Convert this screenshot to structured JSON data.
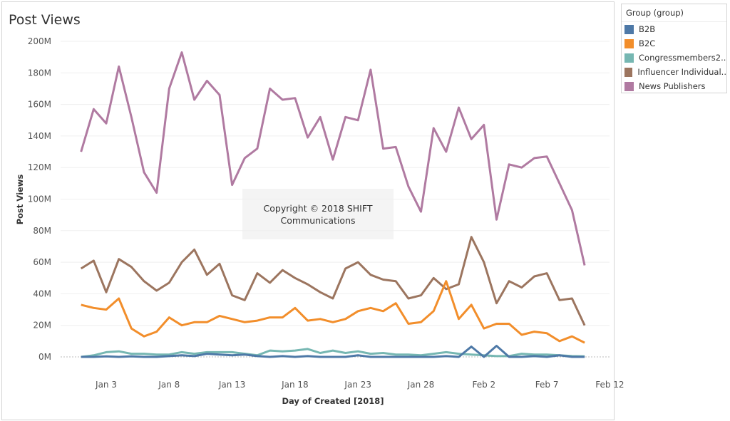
{
  "title": "Post Views",
  "watermark": {
    "line1": "Copyright © 2018 SHIFT",
    "line2": "Communications"
  },
  "legend": {
    "title": "Group (group)",
    "items": [
      "B2B",
      "B2C",
      "Congressmembers2..",
      "Influencer Individual..",
      "News Publishers"
    ]
  },
  "chart_data": {
    "type": "line",
    "title": "Post Views",
    "xlabel": "Day of Created [2018]",
    "ylabel": "Post Views",
    "ylim": [
      0,
      200
    ],
    "yticks": [
      "0M",
      "20M",
      "40M",
      "60M",
      "80M",
      "100M",
      "120M",
      "140M",
      "160M",
      "180M",
      "200M"
    ],
    "xticks": [
      {
        "label": "Jan 3",
        "day": 2
      },
      {
        "label": "Jan 8",
        "day": 7
      },
      {
        "label": "Jan 13",
        "day": 12
      },
      {
        "label": "Jan 18",
        "day": 17
      },
      {
        "label": "Jan 23",
        "day": 22
      },
      {
        "label": "Jan 28",
        "day": 27
      },
      {
        "label": "Feb 2",
        "day": 32
      },
      {
        "label": "Feb 7",
        "day": 37
      },
      {
        "label": "Feb 12",
        "day": 42
      }
    ],
    "x_start": "2018-01-01",
    "x_end": "2018-02-10",
    "grid": true,
    "legend_position": "right",
    "series": [
      {
        "name": "B2B",
        "color": "#4e79a7",
        "values": [
          0,
          0,
          0.3,
          0,
          0.3,
          0,
          0,
          0.5,
          1,
          0.5,
          2,
          1.5,
          1,
          1.5,
          0.5,
          0,
          0.5,
          0,
          0.5,
          0,
          0,
          0,
          1,
          0,
          0,
          0,
          0,
          0,
          0,
          0.5,
          0,
          6.5,
          0,
          7,
          0,
          0,
          0.5,
          0,
          1,
          0,
          0
        ]
      },
      {
        "name": "B2C",
        "color": "#f28e2b",
        "values": [
          33,
          31,
          30,
          37,
          18,
          13,
          16,
          25,
          20,
          22,
          22,
          26,
          24,
          22,
          23,
          25,
          25,
          31,
          23,
          24,
          22,
          24,
          29,
          31,
          29,
          34,
          21,
          22,
          29,
          48,
          24,
          33,
          18,
          21,
          21,
          14,
          16,
          15,
          10,
          13,
          9
        ]
      },
      {
        "name": "Congressmembers2..",
        "color": "#76b7b2",
        "values": [
          0,
          1,
          3,
          3.5,
          2,
          2,
          1.5,
          1.5,
          3,
          2,
          3,
          3,
          3,
          2,
          1,
          4,
          3.5,
          4,
          5,
          2.5,
          4,
          2.5,
          3.5,
          2,
          2.5,
          1.5,
          1.5,
          1,
          2,
          3,
          2,
          1.5,
          1,
          0.5,
          0.5,
          2,
          1.5,
          1.5,
          1,
          0.5,
          0.3
        ]
      },
      {
        "name": "Influencer Individual..",
        "color": "#9c755f",
        "values": [
          56,
          61,
          41,
          62,
          57,
          48,
          42,
          47,
          60,
          68,
          52,
          59,
          39,
          36,
          53,
          47,
          55,
          50,
          46,
          41,
          37,
          56,
          60,
          52,
          49,
          48,
          37,
          39,
          50,
          43,
          46,
          76,
          60,
          34,
          48,
          44,
          51,
          53,
          36,
          37,
          20
        ]
      },
      {
        "name": "News Publishers",
        "color": "#b07aa1",
        "values": [
          130,
          157,
          148,
          184,
          152,
          117,
          104,
          170,
          193,
          163,
          175,
          166,
          109,
          126,
          132,
          170,
          163,
          164,
          139,
          152,
          125,
          152,
          150,
          182,
          132,
          133,
          108,
          92,
          145,
          130,
          158,
          138,
          147,
          87,
          122,
          120,
          126,
          127,
          110,
          93,
          58
        ]
      }
    ]
  }
}
